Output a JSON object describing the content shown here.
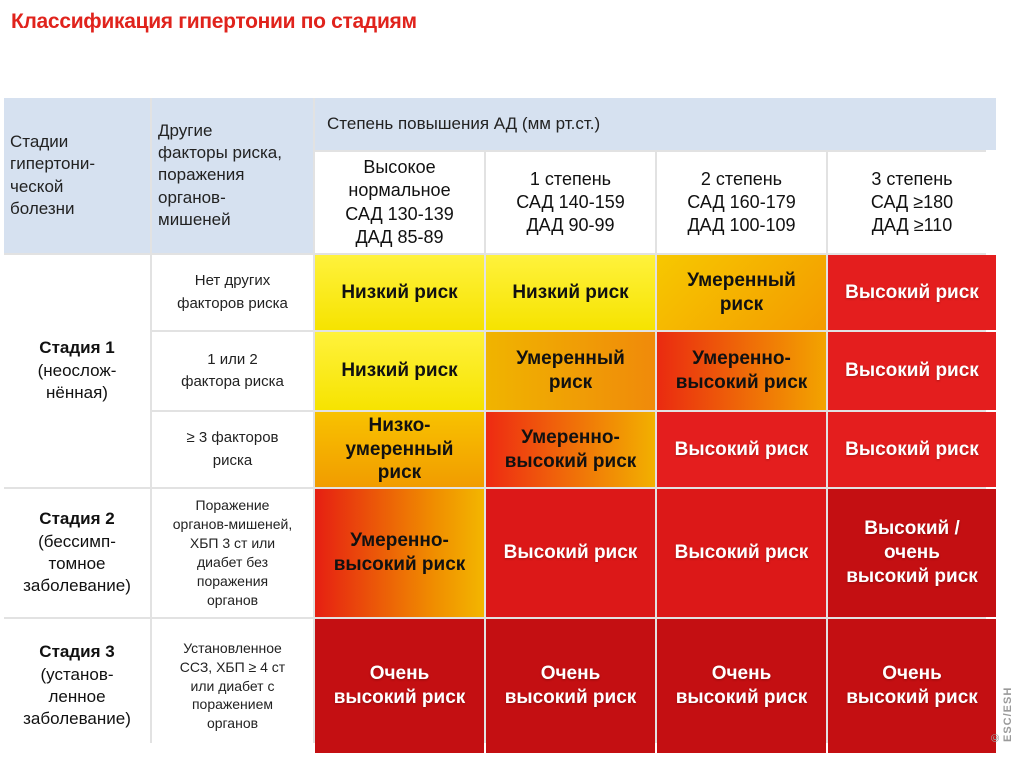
{
  "title": "Классификация гипертонии по стадиям",
  "headers": {
    "stages": "Стадии\nгипертони-\nческой\nболезни",
    "factors": "Другие\nфакторы риска,\nпоражения\nорганов-\nмишеней",
    "bp_degree": "Степень повышения АД (мм рт.ст.)"
  },
  "grades": [
    "Высокое\nнормальное\nСАД 130-139\nДАД 85-89",
    "1 степень\nСАД 140-159\nДАД 90-99",
    "2 степень\nСАД 160-179\nДАД 100-109",
    "3 степень\nСАД  ≥180\nДАД  ≥110"
  ],
  "stages": [
    {
      "title": "Стадия 1",
      "sub": "(неослож-\nнённая)"
    },
    {
      "title": "Стадия  2",
      "sub": "(бессимп-\nтомное\nзаболевание)"
    },
    {
      "title": "Стадия 3",
      "sub": "(установ-\nленное\nзаболевание)"
    }
  ],
  "factors": [
    "Нет других\nфакторов риска",
    "1 или 2\nфактора риска",
    "≥ 3 факторов\nриска",
    "Поражение\nорганов-мишеней,\nХБП 3 ст или\nдиабет без\nпоражения\nорганов",
    "Установленное\nССЗ, ХБП ≥ 4 ст\nили диабет с\nпоражением\nорганов"
  ],
  "risks": [
    [
      "Низкий риск",
      "Низкий риск",
      "Умеренный\nриск",
      "Высокий риск"
    ],
    [
      "Низкий риск",
      "Умеренный\nриск",
      "Умеренно-\nвысокий риск",
      "Высокий риск"
    ],
    [
      "Низко-\nумеренный\nриск",
      "Умеренно-\nвысокий риск",
      "Высокий риск",
      "Высокий риск"
    ],
    [
      "Умеренно-\nвысокий риск",
      "Высокий риск",
      "Высокий риск",
      "Высокий /\nочень\nвысокий риск"
    ],
    [
      "Очень\nвысокий риск",
      "Очень\nвысокий риск",
      "Очень\nвысокий риск",
      "Очень\nвысокий риск"
    ]
  ],
  "risk_colors": {
    "low": "#f6e300",
    "moderate": "#f39a00",
    "high": "#e41e1e",
    "very_high": "#c40f12"
  },
  "watermark": "© ESC/ESH 2018"
}
